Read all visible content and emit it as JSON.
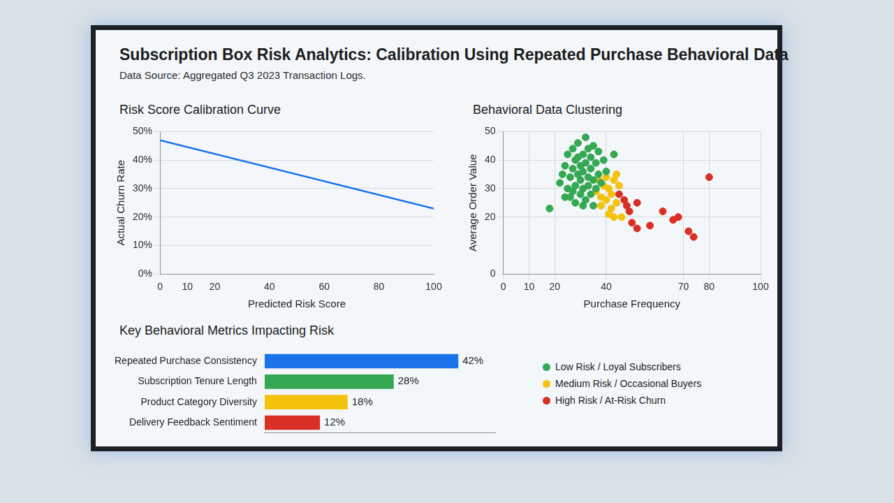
{
  "title": "Subscription Box Risk Analytics: Calibration Using Repeated Purchase Behavioral Data",
  "subtitle": "Data Source: Aggregated Q3 2023 Transaction Logs.",
  "chart_data": [
    {
      "type": "line",
      "title": "Risk Score Calibration Curve",
      "x_label": "Predicted Risk Score",
      "y_label": "Actual Churn Rate",
      "x": [
        0,
        100
      ],
      "values": [
        47,
        23
      ],
      "color": "#1a73e8",
      "marker": "none",
      "line_style": "solid",
      "xlim": [
        0,
        100
      ],
      "xticks": [
        0,
        10,
        20,
        40,
        60,
        80,
        100
      ],
      "ylim": [
        0,
        50
      ],
      "yticks": [
        {
          "value": 0,
          "label": "0%"
        },
        {
          "value": 10,
          "label": "10%"
        },
        {
          "value": 20,
          "label": "20%"
        },
        {
          "value": 30,
          "label": "30%"
        },
        {
          "value": 40,
          "label": "40%"
        },
        {
          "value": 50,
          "label": "50%"
        }
      ],
      "grid": "y"
    },
    {
      "type": "scatter",
      "title": "Behavioral Data Clustering",
      "x_label": "Purchase Frequency",
      "y_label": "Average Order Value",
      "xlim": [
        0,
        100
      ],
      "xticks": [
        0,
        10,
        20,
        40,
        70,
        80,
        100
      ],
      "ylim": [
        0,
        50
      ],
      "yticks": [
        0,
        20,
        30,
        40,
        50
      ],
      "grid": true,
      "marker": "circle",
      "legend": "bottom",
      "series": [
        {
          "name": "Low Risk / Loyal Subscribers",
          "color": "#34a853",
          "values": [
            [
              18,
              23
            ],
            [
              22,
              32
            ],
            [
              23,
              35
            ],
            [
              24,
              38
            ],
            [
              25,
              30
            ],
            [
              25,
              42
            ],
            [
              26,
              34
            ],
            [
              26,
              27
            ],
            [
              27,
              44
            ],
            [
              27,
              37
            ],
            [
              28,
              31
            ],
            [
              28,
              40
            ],
            [
              28,
              25
            ],
            [
              29,
              35
            ],
            [
              29,
              46
            ],
            [
              30,
              38
            ],
            [
              30,
              28
            ],
            [
              30,
              33
            ],
            [
              31,
              42
            ],
            [
              31,
              30
            ],
            [
              31,
              36
            ],
            [
              32,
              48
            ],
            [
              32,
              26
            ],
            [
              32,
              39
            ],
            [
              33,
              34
            ],
            [
              33,
              31
            ],
            [
              33,
              44
            ],
            [
              34,
              37
            ],
            [
              34,
              28
            ],
            [
              34,
              41
            ],
            [
              35,
              33
            ],
            [
              35,
              24
            ],
            [
              36,
              39
            ],
            [
              36,
              30
            ],
            [
              37,
              43
            ],
            [
              37,
              35
            ],
            [
              38,
              32
            ],
            [
              39,
              40
            ],
            [
              40,
              36
            ],
            [
              43,
              42
            ],
            [
              24,
              27
            ],
            [
              27,
              29
            ],
            [
              29,
              41
            ],
            [
              31,
              24
            ],
            [
              35,
              45
            ]
          ]
        },
        {
          "name": "Medium Risk / Occasional Buyers",
          "color": "#f4c20d",
          "values": [
            [
              36,
              29
            ],
            [
              37,
              33
            ],
            [
              38,
              27
            ],
            [
              38,
              24
            ],
            [
              39,
              31
            ],
            [
              40,
              26
            ],
            [
              40,
              34
            ],
            [
              41,
              30
            ],
            [
              42,
              28
            ],
            [
              42,
              23
            ],
            [
              43,
              33
            ],
            [
              44,
              25
            ],
            [
              44,
              35
            ],
            [
              45,
              31
            ],
            [
              41,
              21
            ],
            [
              43,
              20
            ],
            [
              46,
              20
            ]
          ]
        },
        {
          "name": "High Risk / At-Risk Churn",
          "color": "#d93025",
          "values": [
            [
              45,
              28
            ],
            [
              47,
              26
            ],
            [
              48,
              24
            ],
            [
              49,
              22
            ],
            [
              52,
              25
            ],
            [
              50,
              18
            ],
            [
              52,
              16
            ],
            [
              57,
              17
            ],
            [
              62,
              22
            ],
            [
              66,
              19
            ],
            [
              68,
              20
            ],
            [
              72,
              15
            ],
            [
              74,
              13
            ],
            [
              80,
              34
            ]
          ]
        }
      ]
    },
    {
      "type": "bar",
      "orientation": "horizontal",
      "title": "Key Behavioral Metrics Impacting Risk",
      "categories": [
        "Repeated Purchase Consistency",
        "Subscription Tenure Length",
        "Product Category Diversity",
        "Delivery Feedback Sentiment"
      ],
      "values": [
        42,
        28,
        18,
        12
      ],
      "value_labels": [
        "42%",
        "28%",
        "18%",
        "12%"
      ],
      "colors": [
        "#1a73e8",
        "#34a853",
        "#f4c20d",
        "#d93025"
      ],
      "xlim": [
        0,
        50
      ],
      "data_labels": true,
      "tick_labels": "y",
      "grid": false
    }
  ]
}
